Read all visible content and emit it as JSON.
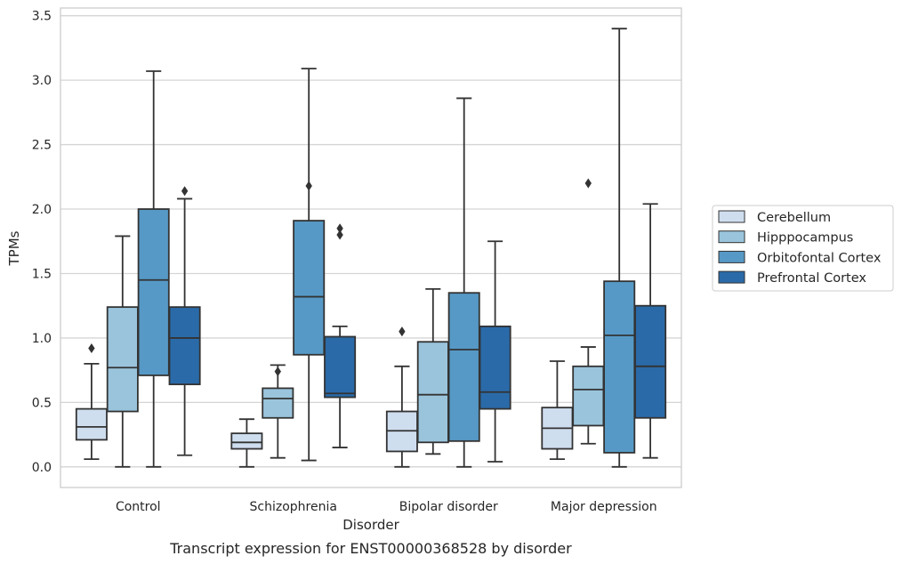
{
  "chart_data": {
    "type": "box",
    "caption": "Transcript expression for ENST00000368528 by disorder",
    "xlabel": "Disorder",
    "ylabel": "TPMs",
    "ylim": [
      -0.16,
      3.56
    ],
    "yticks": [
      0.0,
      0.5,
      1.0,
      1.5,
      2.0,
      2.5,
      3.0,
      3.5
    ],
    "ytick_labels": [
      "0.0",
      "0.5",
      "1.0",
      "1.5",
      "2.0",
      "2.5",
      "3.0",
      "3.5"
    ],
    "grid": true,
    "legend_position": "right",
    "categories": [
      "Control",
      "Schizophrenia",
      "Bipolar disorder",
      "Major depression"
    ],
    "series": [
      {
        "name": "Cerebellum",
        "color": "#cfdeef",
        "boxes": [
          {
            "whislo": 0.06,
            "q1": 0.21,
            "med": 0.31,
            "q3": 0.45,
            "whishi": 0.8,
            "fliers": [
              0.92
            ]
          },
          {
            "whislo": 0.0,
            "q1": 0.14,
            "med": 0.19,
            "q3": 0.26,
            "whishi": 0.37,
            "fliers": []
          },
          {
            "whislo": 0.0,
            "q1": 0.12,
            "med": 0.28,
            "q3": 0.43,
            "whishi": 0.78,
            "fliers": [
              1.05
            ]
          },
          {
            "whislo": 0.06,
            "q1": 0.14,
            "med": 0.3,
            "q3": 0.46,
            "whishi": 0.82,
            "fliers": []
          }
        ]
      },
      {
        "name": "Hipppocampus",
        "color": "#9ac4dc",
        "boxes": [
          {
            "whislo": 0.0,
            "q1": 0.43,
            "med": 0.77,
            "q3": 1.24,
            "whishi": 1.79,
            "fliers": []
          },
          {
            "whislo": 0.07,
            "q1": 0.38,
            "med": 0.53,
            "q3": 0.61,
            "whishi": 0.79,
            "fliers": [
              0.74
            ]
          },
          {
            "whislo": 0.1,
            "q1": 0.19,
            "med": 0.56,
            "q3": 0.97,
            "whishi": 1.38,
            "fliers": []
          },
          {
            "whislo": 0.18,
            "q1": 0.32,
            "med": 0.6,
            "q3": 0.78,
            "whishi": 0.93,
            "fliers": [
              2.2
            ]
          }
        ]
      },
      {
        "name": "Orbitofontal Cortex",
        "color": "#5699c6",
        "boxes": [
          {
            "whislo": 0.0,
            "q1": 0.71,
            "med": 1.45,
            "q3": 2.0,
            "whishi": 3.07,
            "fliers": []
          },
          {
            "whislo": 0.05,
            "q1": 0.87,
            "med": 1.32,
            "q3": 1.91,
            "whishi": 3.09,
            "fliers": [
              2.18
            ]
          },
          {
            "whislo": 0.0,
            "q1": 0.2,
            "med": 0.91,
            "q3": 1.35,
            "whishi": 2.86,
            "fliers": []
          },
          {
            "whislo": 0.0,
            "q1": 0.11,
            "med": 1.02,
            "q3": 1.44,
            "whishi": 3.4,
            "fliers": []
          }
        ]
      },
      {
        "name": "Prefrontal Cortex",
        "color": "#2a6aa8",
        "boxes": [
          {
            "whislo": 0.09,
            "q1": 0.64,
            "med": 1.0,
            "q3": 1.24,
            "whishi": 2.08,
            "fliers": [
              2.14
            ]
          },
          {
            "whislo": 0.15,
            "q1": 0.54,
            "med": 0.57,
            "q3": 1.01,
            "whishi": 1.09,
            "fliers": [
              1.8,
              1.85
            ]
          },
          {
            "whislo": 0.04,
            "q1": 0.45,
            "med": 0.58,
            "q3": 1.09,
            "whishi": 1.75,
            "fliers": []
          },
          {
            "whislo": 0.07,
            "q1": 0.38,
            "med": 0.78,
            "q3": 1.25,
            "whishi": 2.04,
            "fliers": []
          }
        ]
      }
    ],
    "colors": {
      "grid": "#d5d5d5",
      "frame": "#cccccc",
      "line": "#333333"
    }
  }
}
